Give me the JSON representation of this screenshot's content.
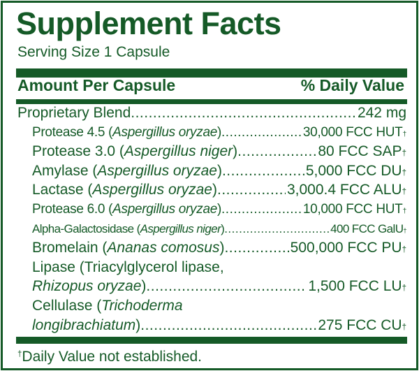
{
  "title": "Supplement Facts",
  "serving_size": "Serving Size 1 Capsule",
  "header": {
    "left": "Amount Per Capsule",
    "right": "% Daily Value"
  },
  "colors": {
    "primary": "#155a27",
    "background": "#ffffff"
  },
  "rows": [
    {
      "name": "Proprietary Blend",
      "amount": "242 mg"
    },
    {
      "pre": "Protease 4.5 (",
      "species": "Aspergillus oryzae",
      "post": ")",
      "amount": "30,000 FCC HUT",
      "mark": "†"
    },
    {
      "pre": "Protease 3.0 (",
      "species": "Aspergillus niger",
      "post": ")",
      "amount": "80 FCC SAP",
      "mark": "†"
    },
    {
      "pre": "Amylase (",
      "species": "Aspergillus oryzae",
      "post": ")",
      "amount": "5,000 FCC DU",
      "mark": "†"
    },
    {
      "pre": "Lactase (",
      "species": "Aspergillus oryzae",
      "post": ")",
      "amount": "3,000.4 FCC ALU",
      "mark": "†"
    },
    {
      "pre": "Protease 6.0 (",
      "species": "Aspergillus oryzae",
      "post": ")",
      "amount": "10,000 FCC HUT",
      "mark": "†"
    },
    {
      "pre": "Alpha-Galactosidase (",
      "species": "Aspergillus niger",
      "post": ")",
      "amount": "400 FCC GalU",
      "mark": "†"
    },
    {
      "pre": "Bromelain (",
      "species": "Ananas comosus",
      "post": ")",
      "amount": "500,000 FCC PU",
      "mark": "†"
    },
    {
      "line1": "Lipase (Triacylglycerol lipase,",
      "species": "Rhizopus oryzae",
      "post": ")",
      "amount": "1,500 FCC LU",
      "mark": "†"
    },
    {
      "line1_pre": "Cellulase (",
      "line1_species": "Trichoderma",
      "species": "longibrachiatum",
      "post": ")",
      "amount": "275 FCC CU",
      "mark": "†"
    }
  ],
  "footnote": {
    "mark": "†",
    "text": "Daily Value not established."
  }
}
